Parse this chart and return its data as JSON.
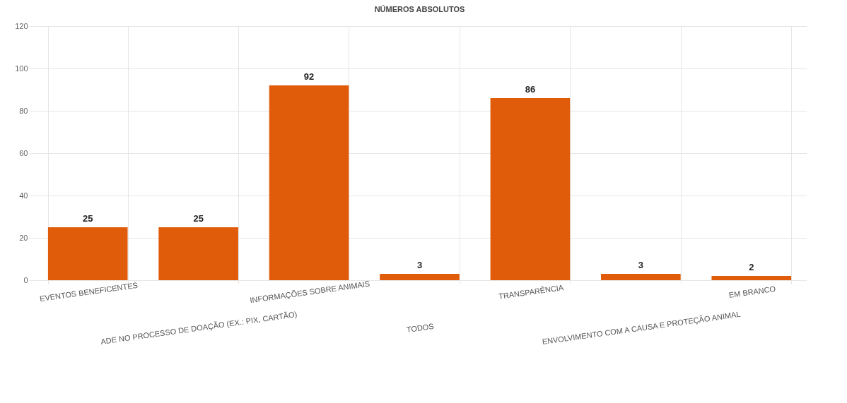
{
  "chart_data": {
    "type": "bar",
    "title": "NÚMEROS ABSOLUTOS",
    "categories": [
      "EVENTOS BENEFICENTES",
      "ADE NO PROCESSO DE DOAÇÃO (EX.: PIX, CARTÃO)",
      "INFORMAÇÕES SOBRE ANIMAIS",
      "TODOS",
      "TRANSPARÊNCIA",
      "ENVOLVIMENTO COM A CAUSA E PROTEÇÃO ANIMAL",
      "EM BRANCO"
    ],
    "values": [
      25,
      25,
      92,
      3,
      86,
      3,
      2
    ],
    "color": "#e05c0a",
    "ylim": [
      0,
      120
    ],
    "yticks": [
      0,
      20,
      40,
      60,
      80,
      100,
      120
    ],
    "grid": true,
    "data_labels": true
  }
}
